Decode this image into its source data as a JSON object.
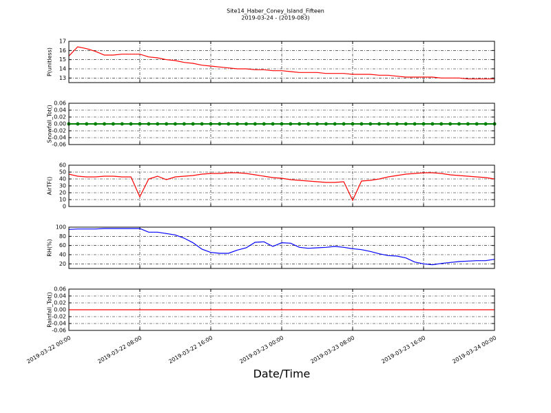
{
  "chart_data": {
    "type": "line",
    "title": "Site14_Haber_Coney_Island_Fifteen",
    "subtitle": "2019-03-24 - (2019-083)",
    "xlabel": "Date/Time",
    "grid": true,
    "xlim": [
      "2019-03-22 00:00",
      "2019-03-24 00:00"
    ],
    "xticks": [
      "2019-03-22 00:00",
      "2019-03-22 08:00",
      "2019-03-22 16:00",
      "2019-03-23 00:00",
      "2019-03-23 08:00",
      "2019-03-23 16:00",
      "2019-03-24 00:00"
    ],
    "x": [
      "2019-03-22 00:00",
      "2019-03-22 01:00",
      "2019-03-22 02:00",
      "2019-03-22 03:00",
      "2019-03-22 04:00",
      "2019-03-22 05:00",
      "2019-03-22 06:00",
      "2019-03-22 07:00",
      "2019-03-22 08:00",
      "2019-03-22 09:00",
      "2019-03-22 10:00",
      "2019-03-22 11:00",
      "2019-03-22 12:00",
      "2019-03-22 13:00",
      "2019-03-22 14:00",
      "2019-03-22 15:00",
      "2019-03-22 16:00",
      "2019-03-22 17:00",
      "2019-03-22 18:00",
      "2019-03-22 19:00",
      "2019-03-22 20:00",
      "2019-03-22 21:00",
      "2019-03-22 22:00",
      "2019-03-22 23:00",
      "2019-03-23 00:00",
      "2019-03-23 01:00",
      "2019-03-23 02:00",
      "2019-03-23 03:00",
      "2019-03-23 04:00",
      "2019-03-23 05:00",
      "2019-03-23 06:00",
      "2019-03-23 07:00",
      "2019-03-23 08:00",
      "2019-03-23 09:00",
      "2019-03-23 10:00",
      "2019-03-23 11:00",
      "2019-03-23 12:00",
      "2019-03-23 13:00",
      "2019-03-23 14:00",
      "2019-03-23 15:00",
      "2019-03-23 16:00",
      "2019-03-23 17:00",
      "2019-03-23 18:00",
      "2019-03-23 19:00",
      "2019-03-23 20:00",
      "2019-03-23 21:00",
      "2019-03-23 22:00",
      "2019-03-23 23:00",
      "2019-03-24 00:00"
    ],
    "panels": [
      {
        "ylabel": "P(unitless)",
        "ylim": [
          12.5,
          17
        ],
        "yticks": [
          13,
          14,
          15,
          16,
          17
        ],
        "series": [
          {
            "color": "#ff0000",
            "markers": false,
            "values": [
              15.4,
              16.4,
              16.2,
              15.9,
              15.5,
              15.5,
              15.6,
              15.6,
              15.6,
              15.3,
              15.2,
              15.0,
              14.9,
              14.7,
              14.6,
              14.4,
              14.3,
              14.2,
              14.1,
              14.0,
              14.0,
              13.9,
              13.9,
              13.8,
              13.8,
              13.7,
              13.6,
              13.6,
              13.6,
              13.5,
              13.5,
              13.5,
              13.4,
              13.4,
              13.4,
              13.3,
              13.3,
              13.2,
              13.1,
              13.1,
              13.1,
              13.1,
              13.0,
              13.0,
              13.0,
              12.9,
              12.9,
              12.9,
              12.9
            ]
          }
        ]
      },
      {
        "ylabel": "Snowfall_Tot()",
        "ylim": [
          -0.06,
          0.06
        ],
        "yticks": [
          {
            "value": -0.06,
            "label": "-0.06"
          },
          {
            "value": -0.04,
            "label": "-0.04"
          },
          {
            "value": -0.02,
            "label": "-0.02"
          },
          {
            "value": 0,
            "label": "0.00"
          },
          {
            "value": 0.02,
            "label": "0.02"
          },
          {
            "value": 0.04,
            "label": "0.04"
          },
          {
            "value": 0.06,
            "label": "0.06"
          }
        ],
        "series": [
          {
            "color": "#008000",
            "markers": true,
            "values": [
              0,
              0,
              0,
              0,
              0,
              0,
              0,
              0,
              0,
              0,
              0,
              0,
              0,
              0,
              0,
              0,
              0,
              0,
              0,
              0,
              0,
              0,
              0,
              0,
              0,
              0,
              0,
              0,
              0,
              0,
              0,
              0,
              0,
              0,
              0,
              0,
              0,
              0,
              0,
              0,
              0,
              0,
              0,
              0,
              0,
              0,
              0,
              0,
              0
            ]
          }
        ]
      },
      {
        "ylabel": "AirTF()",
        "ylim": [
          0,
          60
        ],
        "yticks": [
          0,
          10,
          20,
          30,
          40,
          50,
          60
        ],
        "series": [
          {
            "color": "#ff0000",
            "markers": false,
            "values": [
              47,
              44,
              43,
              43,
              44,
              44,
              43,
              43,
              14,
              40,
              44,
              39,
              43,
              44,
              45,
              47,
              48,
              48,
              49,
              49,
              48,
              46,
              44,
              42,
              41,
              39,
              38,
              37,
              36,
              35,
              35,
              36,
              9,
              37,
              38,
              40,
              43,
              45,
              47,
              48,
              49,
              49,
              48,
              46,
              45,
              44,
              43,
              42,
              40
            ]
          }
        ]
      },
      {
        "ylabel": "RH(%)",
        "ylim": [
          10,
          100
        ],
        "yticks": [
          20,
          40,
          60,
          80,
          100
        ],
        "series": [
          {
            "color": "#0000ff",
            "markers": false,
            "values": [
              95,
              96,
              96,
              96,
              97,
              97,
              97,
              97,
              97,
              89,
              89,
              86,
              83,
              76,
              66,
              52,
              45,
              43,
              43,
              50,
              55,
              67,
              68,
              58,
              66,
              65,
              56,
              54,
              55,
              56,
              58,
              56,
              53,
              51,
              47,
              42,
              38,
              37,
              33,
              24,
              20,
              18,
              21,
              23,
              25,
              26,
              27,
              27,
              30
            ]
          }
        ]
      },
      {
        "ylabel": "Rainfall_Tot()",
        "ylim": [
          -0.06,
          0.06
        ],
        "yticks": [
          {
            "value": -0.06,
            "label": "-0.06"
          },
          {
            "value": -0.04,
            "label": "-0.04"
          },
          {
            "value": -0.02,
            "label": "-0.02"
          },
          {
            "value": 0,
            "label": "0.00"
          },
          {
            "value": 0.02,
            "label": "0.02"
          },
          {
            "value": 0.04,
            "label": "0.04"
          },
          {
            "value": 0.06,
            "label": "0.06"
          }
        ],
        "series": [
          {
            "color": "#ff0000",
            "markers": false,
            "values": [
              0,
              0,
              0,
              0,
              0,
              0,
              0,
              0,
              0,
              0,
              0,
              0,
              0,
              0,
              0,
              0,
              0,
              0,
              0,
              0,
              0,
              0,
              0,
              0,
              0,
              0,
              0,
              0,
              0,
              0,
              0,
              0,
              0,
              0,
              0,
              0,
              0,
              0,
              0,
              0,
              0,
              0,
              0,
              0,
              0,
              0,
              0,
              0,
              0
            ]
          }
        ]
      }
    ]
  }
}
